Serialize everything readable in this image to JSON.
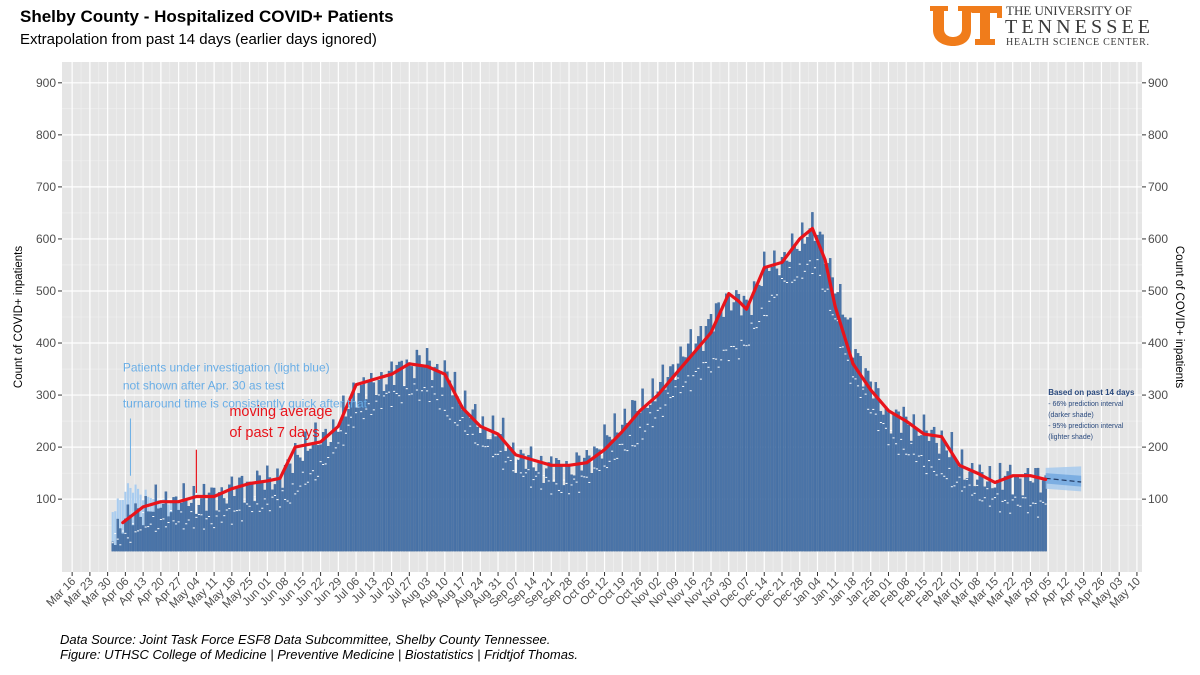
{
  "header": {
    "title": "Shelby County - Hospitalized COVID+ Patients",
    "subtitle": "Extrapolation from past 14 days (earlier days ignored)"
  },
  "logo": {
    "line1": "THE UNIVERSITY OF",
    "line2": "TENNESSEE",
    "line3": "HEALTH SCIENCE CENTER.",
    "brand_color": "#f07c1b",
    "text_color": "#3a3a3a"
  },
  "footer": {
    "line1": "Data Source: Joint Task Force ESF8 Data Subcommittee, Shelby County Tennessee.",
    "line2": "Figure: UTHSC College of Medicine | Preventive Medicine | Biostatistics | Fridtjof Thomas."
  },
  "chart_data": {
    "type": "bar",
    "xlabel": "",
    "ylabel": "Count of COVID+ inpatients",
    "ylabel_right": "Count of COVID+ inpatients",
    "xlim": [
      "2020-03-12",
      "2021-05-12"
    ],
    "ylim": [
      -40,
      940
    ],
    "y_ticks": [
      100,
      200,
      300,
      400,
      500,
      600,
      700,
      800,
      900
    ],
    "x_ticks": [
      "Mar 16",
      "Mar 23",
      "Mar 30",
      "Apr 06",
      "Apr 13",
      "Apr 20",
      "Apr 27",
      "May 04",
      "May 11",
      "May 18",
      "May 25",
      "Jun 01",
      "Jun 08",
      "Jun 15",
      "Jun 22",
      "Jun 29",
      "Jul 06",
      "Jul 13",
      "Jul 20",
      "Jul 27",
      "Aug 03",
      "Aug 10",
      "Aug 17",
      "Aug 24",
      "Aug 31",
      "Sep 07",
      "Sep 14",
      "Sep 21",
      "Sep 28",
      "Oct 05",
      "Oct 12",
      "Oct 19",
      "Oct 26",
      "Nov 02",
      "Nov 09",
      "Nov 16",
      "Nov 23",
      "Nov 30",
      "Dec 07",
      "Dec 14",
      "Dec 21",
      "Dec 28",
      "Jan 04",
      "Jan 11",
      "Jan 18",
      "Jan 25",
      "Feb 01",
      "Feb 08",
      "Feb 15",
      "Feb 22",
      "Mar 01",
      "Mar 08",
      "Mar 15",
      "Mar 22",
      "Mar 29",
      "Apr 05",
      "Apr 12",
      "Apr 19",
      "Apr 26",
      "May 03",
      "May 10"
    ],
    "x_tick_dates": [
      "2020-03-16",
      "2020-03-23",
      "2020-03-30",
      "2020-04-06",
      "2020-04-13",
      "2020-04-20",
      "2020-04-27",
      "2020-05-04",
      "2020-05-11",
      "2020-05-18",
      "2020-05-25",
      "2020-06-01",
      "2020-06-08",
      "2020-06-15",
      "2020-06-22",
      "2020-06-29",
      "2020-07-06",
      "2020-07-13",
      "2020-07-20",
      "2020-07-27",
      "2020-08-03",
      "2020-08-10",
      "2020-08-17",
      "2020-08-24",
      "2020-08-31",
      "2020-09-07",
      "2020-09-14",
      "2020-09-21",
      "2020-09-28",
      "2020-10-05",
      "2020-10-12",
      "2020-10-19",
      "2020-10-26",
      "2020-11-02",
      "2020-11-09",
      "2020-11-16",
      "2020-11-23",
      "2020-11-30",
      "2020-12-07",
      "2020-12-14",
      "2020-12-21",
      "2020-12-28",
      "2021-01-04",
      "2021-01-11",
      "2021-01-18",
      "2021-01-25",
      "2021-02-01",
      "2021-02-08",
      "2021-02-15",
      "2021-02-22",
      "2021-03-01",
      "2021-03-08",
      "2021-03-15",
      "2021-03-22",
      "2021-03-29",
      "2021-04-05",
      "2021-04-12",
      "2021-04-19",
      "2021-04-26",
      "2021-05-03",
      "2021-05-10"
    ],
    "grid": true,
    "series": [
      {
        "type": "bar",
        "color": "#4a74a8",
        "dates": [
          "2020-04-01",
          "2020-04-06",
          "2020-04-13",
          "2020-04-20",
          "2020-04-27",
          "2020-05-04",
          "2020-05-11",
          "2020-05-18",
          "2020-05-25",
          "2020-06-01",
          "2020-06-08",
          "2020-06-15",
          "2020-06-22",
          "2020-06-29",
          "2020-07-06",
          "2020-07-13",
          "2020-07-20",
          "2020-07-27",
          "2020-08-03",
          "2020-08-10",
          "2020-08-17",
          "2020-08-24",
          "2020-08-31",
          "2020-09-07",
          "2020-09-14",
          "2020-09-21",
          "2020-09-28",
          "2020-10-05",
          "2020-10-12",
          "2020-10-19",
          "2020-10-26",
          "2020-11-02",
          "2020-11-09",
          "2020-11-16",
          "2020-11-23",
          "2020-11-30",
          "2020-12-07",
          "2020-12-14",
          "2020-12-21",
          "2020-12-28",
          "2021-01-01",
          "2021-01-04",
          "2021-01-11",
          "2021-01-18",
          "2021-01-25",
          "2021-02-01",
          "2021-02-08",
          "2021-02-15",
          "2021-02-22",
          "2021-03-01",
          "2021-03-08",
          "2021-03-15",
          "2021-03-22",
          "2021-03-29",
          "2021-04-04"
        ],
        "values": [
          30,
          60,
          80,
          90,
          95,
          100,
          105,
          120,
          130,
          135,
          150,
          200,
          215,
          240,
          310,
          320,
          340,
          360,
          365,
          340,
          290,
          240,
          230,
          185,
          170,
          160,
          160,
          175,
          210,
          250,
          280,
          310,
          360,
          400,
          440,
          490,
          470,
          540,
          560,
          590,
          630,
          610,
          520,
          400,
          320,
          260,
          250,
          230,
          215,
          170,
          140,
          140,
          140,
          140,
          140
        ]
      },
      {
        "type": "bar",
        "color": "#a9ccef",
        "dates": [
          "2020-04-01",
          "2020-04-04",
          "2020-04-07",
          "2020-04-10",
          "2020-04-13",
          "2020-04-20",
          "2020-04-27",
          "2020-04-30"
        ],
        "values": [
          80,
          100,
          120,
          120,
          110,
          100,
          100,
          100
        ]
      },
      {
        "type": "line",
        "color": "#e8141b",
        "dates": [
          "2020-04-05",
          "2020-04-13",
          "2020-04-20",
          "2020-04-27",
          "2020-05-04",
          "2020-05-11",
          "2020-05-18",
          "2020-05-25",
          "2020-06-01",
          "2020-06-06",
          "2020-06-12",
          "2020-06-22",
          "2020-06-29",
          "2020-07-06",
          "2020-07-13",
          "2020-07-20",
          "2020-07-27",
          "2020-08-03",
          "2020-08-10",
          "2020-08-17",
          "2020-08-24",
          "2020-08-31",
          "2020-09-07",
          "2020-09-14",
          "2020-09-21",
          "2020-09-28",
          "2020-10-05",
          "2020-10-12",
          "2020-10-19",
          "2020-10-26",
          "2020-11-02",
          "2020-11-09",
          "2020-11-16",
          "2020-11-23",
          "2020-11-30",
          "2020-12-04",
          "2020-12-07",
          "2020-12-14",
          "2020-12-21",
          "2020-12-28",
          "2021-01-02",
          "2021-01-07",
          "2021-01-11",
          "2021-01-18",
          "2021-01-25",
          "2021-02-01",
          "2021-02-08",
          "2021-02-15",
          "2021-02-22",
          "2021-03-01",
          "2021-03-08",
          "2021-03-15",
          "2021-03-22",
          "2021-03-29",
          "2021-04-04"
        ],
        "values": [
          55,
          85,
          95,
          95,
          105,
          105,
          120,
          130,
          135,
          140,
          200,
          210,
          240,
          320,
          330,
          340,
          360,
          355,
          340,
          275,
          240,
          225,
          185,
          175,
          165,
          165,
          170,
          195,
          230,
          270,
          300,
          340,
          380,
          420,
          495,
          480,
          465,
          545,
          555,
          600,
          620,
          560,
          470,
          360,
          310,
          270,
          250,
          225,
          220,
          165,
          150,
          132,
          145,
          145,
          138
        ]
      },
      {
        "type": "points",
        "color": "#ffffff",
        "dates": [
          "2020-04-01",
          "2020-04-13",
          "2020-04-27",
          "2020-05-11",
          "2020-05-25",
          "2020-06-08",
          "2020-06-22",
          "2020-07-06",
          "2020-07-20",
          "2020-08-03",
          "2020-08-17",
          "2020-08-31",
          "2020-09-14",
          "2020-09-28",
          "2020-10-12",
          "2020-10-26",
          "2020-11-09",
          "2020-11-23",
          "2020-12-07",
          "2020-12-21",
          "2021-01-04",
          "2021-01-18",
          "2021-02-01",
          "2021-02-15",
          "2021-03-01",
          "2021-03-15",
          "2021-03-29",
          "2021-04-04"
        ],
        "values": [
          15,
          50,
          60,
          60,
          85,
          100,
          160,
          260,
          300,
          310,
          240,
          185,
          140,
          120,
          170,
          220,
          310,
          360,
          400,
          520,
          550,
          330,
          220,
          170,
          130,
          95,
          90,
          85
        ]
      },
      {
        "type": "forecast",
        "dates": [
          "2021-04-04",
          "2021-04-18"
        ],
        "mean": [
          140,
          133
        ],
        "band95": [
          [
            120,
            160
          ],
          [
            115,
            163
          ]
        ],
        "band66": [
          [
            130,
            150
          ],
          [
            124,
            145
          ]
        ]
      }
    ],
    "annotations": [
      {
        "lines": [
          "Patients under investigation (light blue)",
          "not shown after Apr. 30 as test",
          "turnaround time is consistently quick after that"
        ],
        "color": "#6aaee6",
        "date": "2020-04-05",
        "value": 345
      },
      {
        "lines": [
          "moving average",
          "of past 7 days"
        ],
        "color": "#e8141b",
        "date": "2020-05-17",
        "value": 260
      },
      {
        "lines": [
          "Based on past 14 days",
          "- 66% prediction interval",
          "(darker shade)",
          "- 95% prediction interval",
          "(lighter shade)"
        ],
        "color": "#2a4a7e",
        "date": "2021-04-05",
        "value": 300
      }
    ]
  }
}
